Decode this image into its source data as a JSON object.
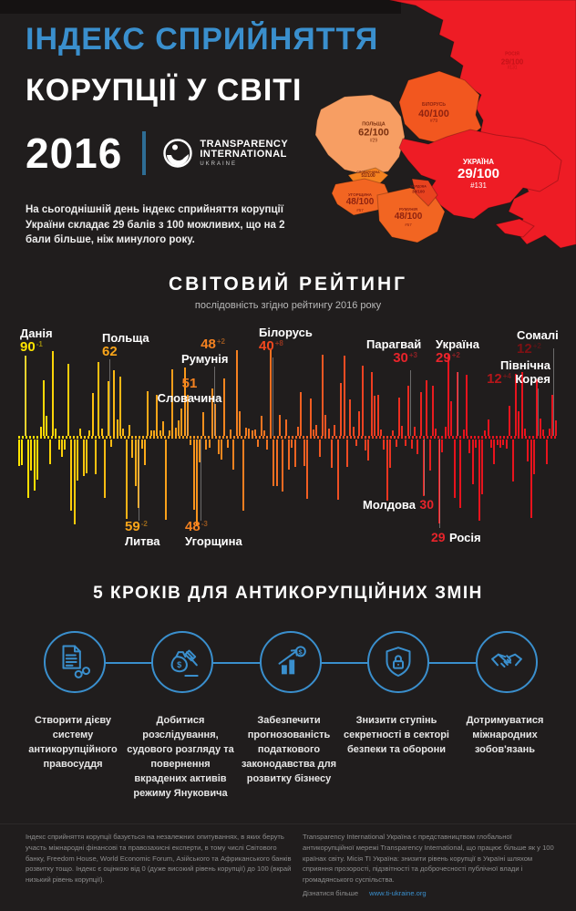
{
  "colors": {
    "accent_blue": "#3a8fcd",
    "map_red": "#ee1c25",
    "map_orange": "#f26522",
    "map_salmon": "#f79e63"
  },
  "header": {
    "title_line1": "ІНДЕКС СПРИЙНЯТТЯ",
    "title_line2": "КОРУПЦІЇ У СВІТІ",
    "year": "2016",
    "logo_line1": "TRANSPARENCY",
    "logo_line2": "INTERNATIONAL",
    "logo_line3": "UKRAINE",
    "intro": "На сьогоднішній день індекс сприйняття корупції України складає 29 балів з 100 можливих, що на 2 бали більше, ніж минулого року."
  },
  "map": {
    "countries": [
      {
        "name": "РОСІЯ",
        "score": "29/100",
        "rank": "#131"
      },
      {
        "name": "ПОЛЬЩА",
        "score": "62/100",
        "rank": "#29"
      },
      {
        "name": "БІЛОРУСЬ",
        "score": "40/100",
        "rank": "#79"
      },
      {
        "name": "УКРАЇНА",
        "score": "29/100",
        "rank": "#131"
      },
      {
        "name": "СЛОВАЧЧИНА",
        "score": "51/100"
      },
      {
        "name": "УГОРЩИНА",
        "score": "48/100",
        "rank": "#57"
      },
      {
        "name": "РУМУНІЯ",
        "score": "48/100",
        "rank": "#57"
      },
      {
        "name": "МОЛДОВА",
        "score": "30/100"
      }
    ]
  },
  "chart_data": {
    "type": "bar",
    "title": "СВІТОВИЙ РЕЙТИНГ",
    "subtitle": "послідовність згідно рейтингу 2016 року",
    "description": "176 країн упорядковані за рейтингом CPI 2016; стовпчики від жовтого (високий бал) до червоного (низький бал), напрямок вгору/вниз декоративний",
    "n_bars": 176,
    "seed": 987654321,
    "score_range": [
      0,
      100
    ],
    "gradient": [
      "#ffe400",
      "#fcb316",
      "#f58220",
      "#f04e23",
      "#e8131d",
      "#e8131d"
    ],
    "highlights": [
      {
        "country": "Данія",
        "score": "90",
        "delta": "-1",
        "value_color": "#ffe400"
      },
      {
        "country": "Польща",
        "score": "62",
        "delta": "",
        "value_color": "#f9a51a"
      },
      {
        "country": "Румунія",
        "score": "48",
        "delta": "+2",
        "value_color": "#f58220"
      },
      {
        "country": "Словачина",
        "score": "51",
        "delta": "",
        "value_color": "#f58220"
      },
      {
        "country": "Білорусь",
        "score": "40",
        "delta": "+8",
        "value_color": "#f1481f"
      },
      {
        "country": "Парагвай",
        "score": "30",
        "delta": "+3",
        "value_color": "#e8242b"
      },
      {
        "country": "Україна",
        "score": "29",
        "delta": "+2",
        "value_color": "#e8242b"
      },
      {
        "country": "Сомалі",
        "score": "12",
        "delta": "+2",
        "value_color": "#7e1013"
      },
      {
        "country": "Північна Корея",
        "name_line1": "Північна",
        "name_line2": "Корея",
        "score": "12",
        "delta": "+4",
        "value_color": "#b5161a"
      },
      {
        "country": "Литва",
        "score": "59",
        "delta": "-2",
        "value_color": "#f9a51a"
      },
      {
        "country": "Угорщина",
        "score": "48",
        "delta": "-3",
        "value_color": "#f58220"
      },
      {
        "country": "Молдова",
        "score": "30",
        "delta": "",
        "value_color": "#e8242b"
      },
      {
        "country": "Росія",
        "score": "29",
        "delta": "",
        "value_color": "#e8242b"
      }
    ],
    "emphasis": [
      {
        "i": 2,
        "dir": 1,
        "f": 0.88
      },
      {
        "i": 29,
        "dir": 1,
        "f": 0.6
      },
      {
        "i": 39,
        "dir": -1,
        "f": 0.75
      },
      {
        "i": 55,
        "dir": 1,
        "f": 0.45
      },
      {
        "i": 58,
        "dir": -1,
        "f": 0.95
      },
      {
        "i": 63,
        "dir": 1,
        "f": 0.52
      },
      {
        "i": 82,
        "dir": 1,
        "f": 0.95
      },
      {
        "i": 127,
        "dir": 1,
        "f": 0.55
      },
      {
        "i": 132,
        "dir": -1,
        "f": 0.62
      },
      {
        "i": 137,
        "dir": -1,
        "f": 0.92
      },
      {
        "i": 143,
        "dir": 1,
        "f": 0.7
      },
      {
        "i": 169,
        "dir": 1,
        "f": 0.62
      },
      {
        "i": 174,
        "dir": 1,
        "f": 0.45
      }
    ]
  },
  "steps": {
    "title": "5 КРОКІВ ДЛЯ АНТИКОРУПЦІЙНИХ ЗМІН",
    "items": [
      {
        "icon": "document-handcuffs-icon",
        "text": "Створити дієву систему антикорупційного правосуддя"
      },
      {
        "icon": "moneybag-gavel-icon",
        "text": "Добитися розслідування, судового розгляду та повернення вкрадених активів режиму Януковича"
      },
      {
        "icon": "growth-chart-icon",
        "text": "Забезпечити прогнозованість податкового законодавства для розвитку бізнесу"
      },
      {
        "icon": "shield-lock-icon",
        "text": "Знизити ступінь секретності в секторі безпеки та оборони"
      },
      {
        "icon": "handshake-icon",
        "text": "Дотримуватися міжнародних зобов'язань"
      }
    ]
  },
  "footer": {
    "left": "Індекс сприйняття корупції базується на незалежних опитуваннях, в яких беруть участь міжнародні фінансові та правозахисні експерти, в тому числі Світового банку, Freedom House, World Economic Forum, Азійського та Африканського банків розвитку тощо. Індекс є оцінкою від 0 (дуже високий рівень корупції) до 100 (вкрай низький рівень корупції).",
    "right": "Transparency International Україна є представництвом глобальної антикорупційної мережі Transparency International, що працює більше як у 100 країнах світу. Місія ТІ Україна: знизити рівень корупції в Україні шляхом сприяння прозорості, підзвітності та доброчесності публічної влади і громадянського суспільства.",
    "more_label": "Дізнатися більше",
    "link": "www.ti-ukraine.org"
  }
}
